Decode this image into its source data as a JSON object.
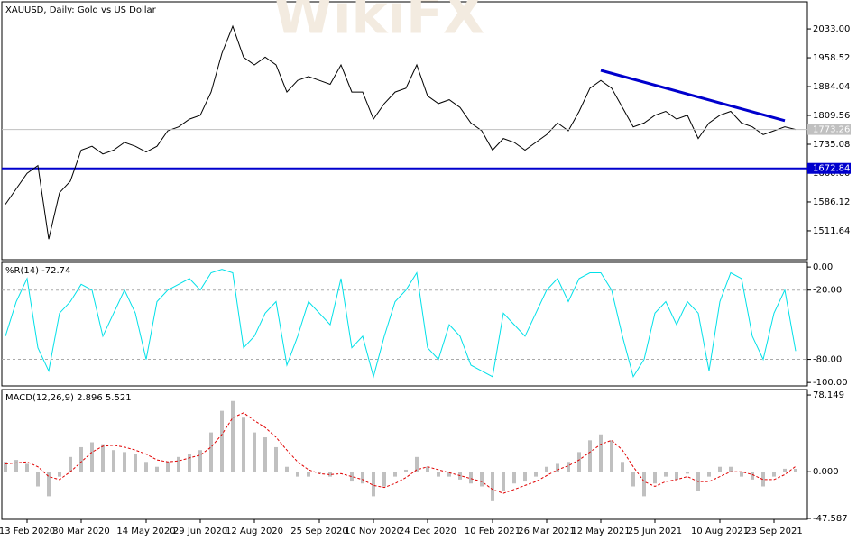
{
  "chart_data": [
    {
      "type": "line",
      "title": "XAUUSD, Daily:  Gold vs US Dollar",
      "watermark": "WikiFX",
      "color": "#000000",
      "values": [
        1580,
        1620,
        1660,
        1680,
        1490,
        1610,
        1640,
        1720,
        1730,
        1710,
        1720,
        1740,
        1730,
        1715,
        1730,
        1770,
        1780,
        1800,
        1810,
        1870,
        1970,
        2040,
        1960,
        1940,
        1960,
        1940,
        1870,
        1900,
        1910,
        1900,
        1890,
        1940,
        1870,
        1870,
        1800,
        1840,
        1870,
        1880,
        1940,
        1860,
        1840,
        1850,
        1830,
        1790,
        1770,
        1720,
        1750,
        1740,
        1720,
        1740,
        1760,
        1790,
        1770,
        1820,
        1880,
        1900,
        1880,
        1830,
        1780,
        1790,
        1810,
        1820,
        1800,
        1810,
        1750,
        1790,
        1810,
        1820,
        1790,
        1780,
        1760,
        1770,
        1780,
        1773.26
      ],
      "ylim": [
        1437,
        2103
      ],
      "yticks": [
        {
          "value": 2033,
          "label": "2033.00"
        },
        {
          "value": 1958.52,
          "label": "1958.52"
        },
        {
          "value": 1884.04,
          "label": "1884.04"
        },
        {
          "value": 1809.56,
          "label": "1809.56"
        },
        {
          "value": 1735.08,
          "label": "1735.08"
        },
        {
          "value": 1660.6,
          "label": "1660.60"
        },
        {
          "value": 1586.12,
          "label": "1586.12"
        },
        {
          "value": 1511.64,
          "label": "1511.64"
        }
      ],
      "hlines": [
        {
          "value": 1672.84,
          "color": "#0000cd"
        }
      ],
      "trendline": {
        "x": [
          55,
          72
        ],
        "values": [
          1926,
          1796
        ],
        "color": "#0000cd"
      }
    },
    {
      "type": "line",
      "title": "%R(14) -72.74",
      "color": "#00e0e8",
      "values": [
        -60,
        -30,
        -10,
        -70,
        -90,
        -40,
        -30,
        -15,
        -20,
        -60,
        -40,
        -20,
        -40,
        -80,
        -30,
        -20,
        -15,
        -10,
        -20,
        -5,
        -2,
        -5,
        -70,
        -60,
        -40,
        -30,
        -85,
        -60,
        -30,
        -40,
        -50,
        -10,
        -70,
        -60,
        -95,
        -60,
        -30,
        -20,
        -5,
        -70,
        -80,
        -50,
        -60,
        -85,
        -90,
        -95,
        -40,
        -50,
        -60,
        -40,
        -20,
        -10,
        -30,
        -10,
        -5,
        -5,
        -20,
        -60,
        -95,
        -80,
        -40,
        -30,
        -50,
        -30,
        -40,
        -90,
        -30,
        -5,
        -10,
        -60,
        -80,
        -40,
        -20,
        -72.74
      ],
      "ylim": [
        -103,
        4
      ],
      "yticks": [
        {
          "value": 0,
          "label": "0.00"
        },
        {
          "value": -20,
          "label": "-20.00"
        },
        {
          "value": -80,
          "label": "-80.00"
        },
        {
          "value": -100,
          "label": "-100.00"
        }
      ],
      "levels": [
        -20,
        -80
      ]
    },
    {
      "type": "macd",
      "title": "MACD(12,26,9) 2.896 5.521",
      "categories": [
        null,
        null,
        "13 Feb 2020",
        null,
        null,
        null,
        null,
        "30 Mar 2020",
        null,
        null,
        null,
        null,
        null,
        "14 May 2020",
        null,
        null,
        null,
        null,
        "29 Jun 2020",
        null,
        null,
        null,
        null,
        "12 Aug 2020",
        null,
        null,
        null,
        null,
        null,
        "25 Sep 2020",
        null,
        null,
        null,
        null,
        "10 Nov 2020",
        null,
        null,
        null,
        null,
        "24 Dec 2020",
        null,
        null,
        null,
        null,
        null,
        "10 Feb 2021",
        null,
        null,
        null,
        null,
        "26 Mar 2021",
        null,
        null,
        null,
        null,
        "12 May 2021",
        null,
        null,
        null,
        null,
        "25 Jun 2021",
        null,
        null,
        null,
        null,
        null,
        "10 Aug 2021",
        null,
        null,
        null,
        null,
        "23 Sep 2021",
        null,
        null
      ],
      "series": [
        {
          "color": "#c0c0c0",
          "values": [
            10,
            12,
            8,
            -15,
            -25,
            -5,
            15,
            25,
            30,
            28,
            22,
            20,
            18,
            10,
            5,
            10,
            15,
            18,
            22,
            40,
            62,
            72,
            55,
            40,
            35,
            25,
            5,
            -5,
            -5,
            -2,
            -5,
            0,
            -10,
            -12,
            -25,
            -15,
            -5,
            2,
            15,
            5,
            -5,
            -5,
            -8,
            -12,
            -15,
            -30,
            -20,
            -12,
            -10,
            -5,
            5,
            8,
            10,
            20,
            32,
            38,
            32,
            10,
            -15,
            -25,
            -12,
            -5,
            -8,
            -2,
            -20,
            -5,
            5,
            5,
            -5,
            -8,
            -15,
            -5,
            3,
            2.896
          ]
        },
        {
          "color": "#e00000",
          "values": [
            8,
            9,
            10,
            5,
            -5,
            -8,
            0,
            10,
            20,
            26,
            27,
            25,
            22,
            18,
            12,
            10,
            11,
            14,
            17,
            25,
            38,
            55,
            60,
            52,
            45,
            35,
            22,
            10,
            2,
            -2,
            -3,
            -2,
            -5,
            -8,
            -14,
            -16,
            -12,
            -6,
            2,
            5,
            2,
            -1,
            -4,
            -7,
            -10,
            -18,
            -22,
            -18,
            -14,
            -10,
            -4,
            2,
            6,
            12,
            20,
            28,
            32,
            22,
            5,
            -10,
            -15,
            -10,
            -8,
            -5,
            -10,
            -10,
            -5,
            0,
            0,
            -3,
            -8,
            -8,
            -3,
            5.521
          ]
        }
      ],
      "ylim": [
        -48.5,
        83.7
      ],
      "yticks": [
        {
          "value": 78.149,
          "label": "78.149"
        },
        {
          "value": 0,
          "label": "0.000"
        },
        {
          "value": -47.587,
          "label": "-47.587"
        }
      ]
    }
  ]
}
